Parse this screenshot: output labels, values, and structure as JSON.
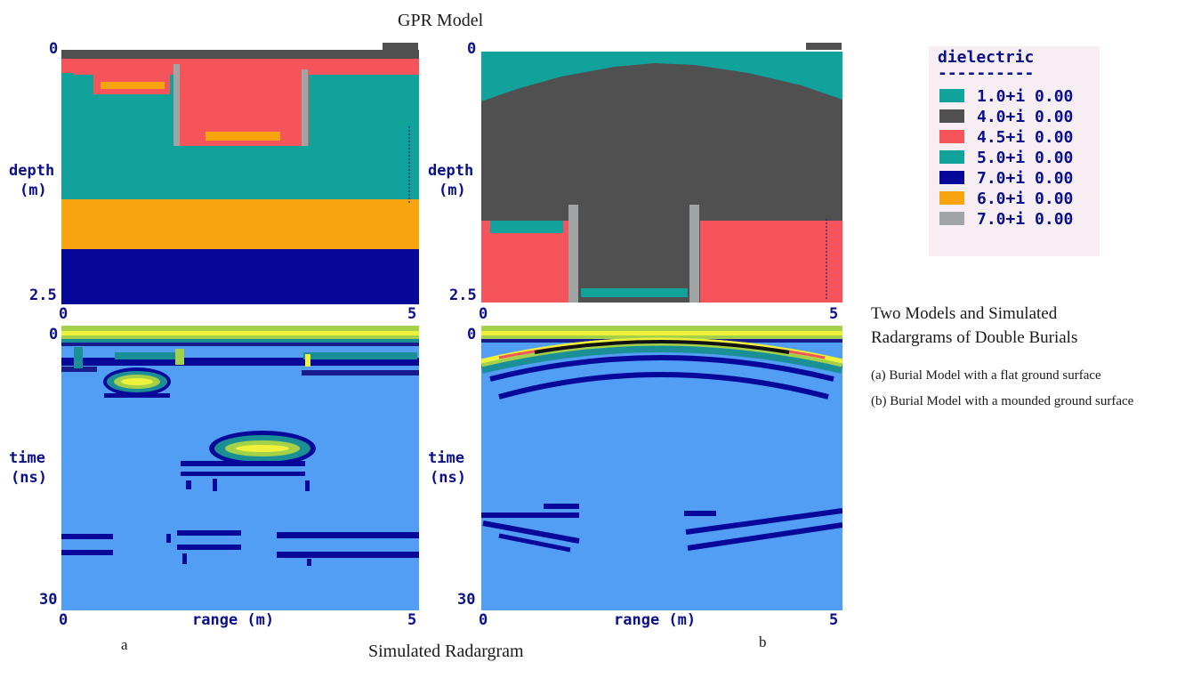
{
  "title_top": "GPR Model",
  "title_bottom": "Simulated Radargram",
  "panel_labels": {
    "a": "a",
    "b": "b"
  },
  "axes": {
    "depth_label_line1": "depth",
    "depth_label_line2": "(m)",
    "depth_min": "0",
    "depth_max": "2.5",
    "time_label_line1": "time",
    "time_label_line2": "(ns)",
    "time_min": "0",
    "time_max": "30",
    "range_label": "range (m)",
    "range_min": "0",
    "range_max": "5"
  },
  "legend": {
    "title": "dielectric",
    "underline": "----------",
    "items": [
      {
        "label": "1.0+i 0.00",
        "color": "#12a29c"
      },
      {
        "label": "4.0+i 0.00",
        "color": "#505050"
      },
      {
        "label": "4.5+i 0.00",
        "color": "#f5545a"
      },
      {
        "label": "5.0+i 0.00",
        "color": "#12a29c"
      },
      {
        "label": "7.0+i 0.00",
        "color": "#07079a"
      },
      {
        "label": "6.0+i 0.00",
        "color": "#f8a40f"
      },
      {
        "label": "7.0+i 0.00",
        "color": "#a0a4a4"
      }
    ]
  },
  "caption": {
    "title_line1": "Two Models and Simulated",
    "title_line2": "Radargrams of Double Burials",
    "item_a": "(a) Burial Model with a flat ground surface",
    "item_b": "(b) Burial Model with a mounded ground surface"
  }
}
